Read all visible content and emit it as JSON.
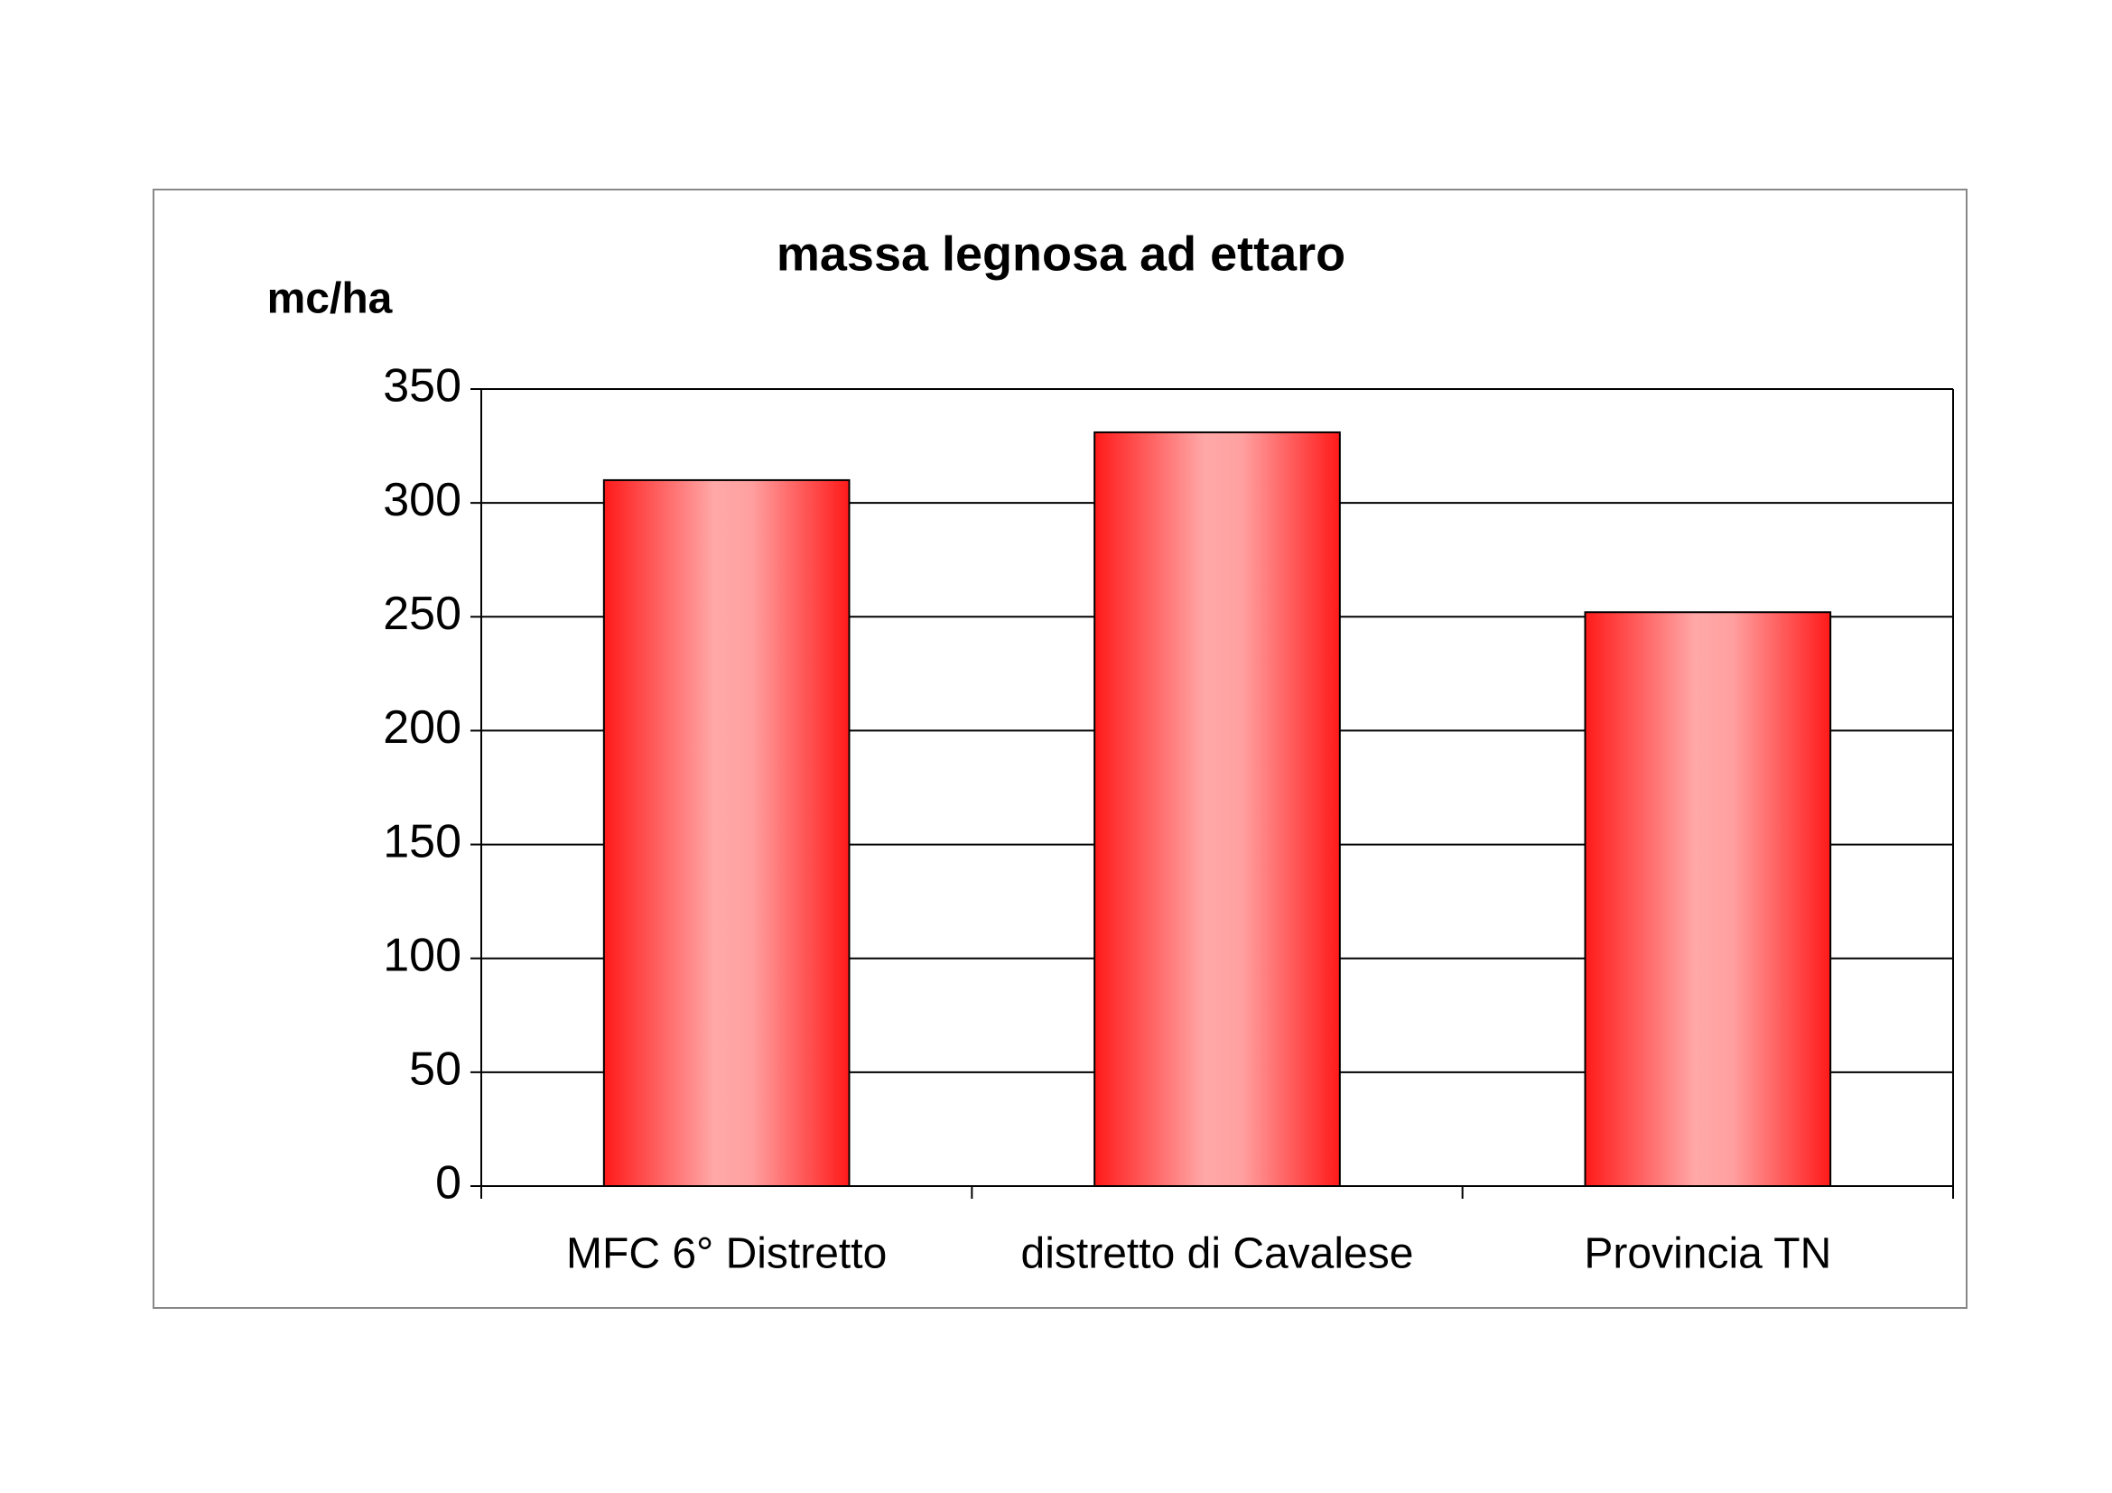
{
  "chart_data": {
    "type": "bar",
    "title": "massa legnosa ad ettaro",
    "y_label": "mc/ha",
    "categories": [
      "MFC 6° Distretto",
      "distretto di Cavalese",
      "Provincia TN"
    ],
    "values": [
      310,
      331,
      252
    ],
    "color": "#ff1a1a",
    "ylim": [
      0,
      350
    ],
    "yticks": [
      0,
      50,
      100,
      150,
      200,
      250,
      300,
      350
    ],
    "grid": true
  }
}
